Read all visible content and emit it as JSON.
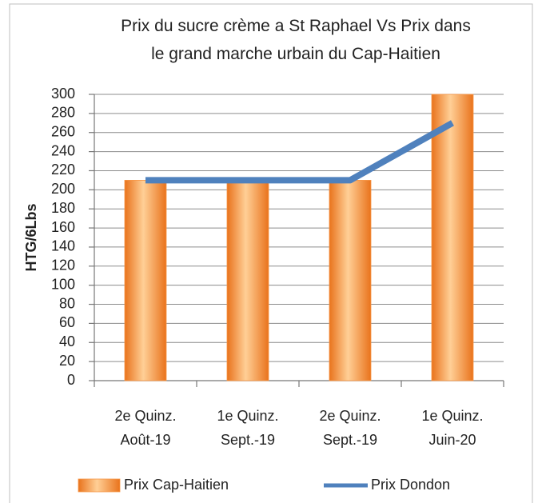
{
  "chart_data": {
    "type": "bar+line",
    "title": "Prix du sucre crème a St Raphael Vs Prix dans\nle grand marche urbain du Cap-Haitien",
    "y_label": "HTG/6Lbs",
    "categories": [
      "2e Quinz.\nAoût-19",
      "1e Quinz.\nSept.-19",
      "2e Quinz.\nSept.-19",
      "1e Quinz.\nJuin-20"
    ],
    "series": [
      {
        "name": "Prix Cap-Haitien",
        "type": "bar",
        "color": "#f79646",
        "values": [
          210,
          210,
          210,
          300
        ]
      },
      {
        "name": "Prix Dondon",
        "type": "line",
        "color": "#4f81bd",
        "values": [
          210,
          210,
          210,
          270
        ]
      }
    ],
    "ylim": [
      0,
      300
    ],
    "yticks": [
      0,
      20,
      40,
      60,
      80,
      100,
      120,
      140,
      160,
      180,
      200,
      220,
      240,
      260,
      280,
      300
    ],
    "grid": true,
    "legend": "bottom"
  }
}
